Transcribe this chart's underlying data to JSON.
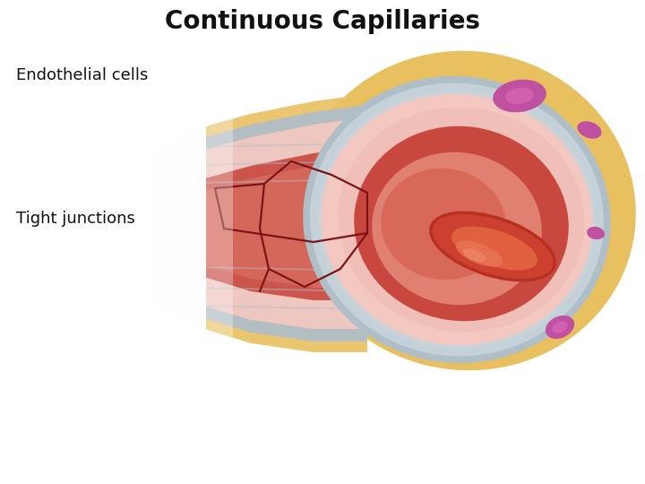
{
  "title": "Continuous Capillaries",
  "title_fontsize": 20,
  "title_fontweight": "bold",
  "label_endothelial": "Endothelial cells",
  "label_tight": "Tight junctions",
  "label_fontsize": 13,
  "bg_color": "#ffffff",
  "colors": {
    "outer_yellow": "#E8C060",
    "gray_wall": "#B0BEC8",
    "pink_endothelial": "#F2C8C0",
    "lumen_red": "#C84840",
    "lumen_light": "#E08070",
    "rbc_dark": "#B83020",
    "rbc_mid": "#CC4030",
    "rbc_light": "#E06040",
    "rbc_highlight": "#E87858",
    "pink_bumpy": "#F0C0B8",
    "purple_cell": "#C050A0",
    "purple_light": "#D060B0",
    "vein_line": "#7B1515",
    "gray_light": "#C8D4DC",
    "tube_outer_flesh": "#D8C0B0",
    "tube_inner_flesh": "#E8C8B8",
    "text_color": "#111111"
  }
}
